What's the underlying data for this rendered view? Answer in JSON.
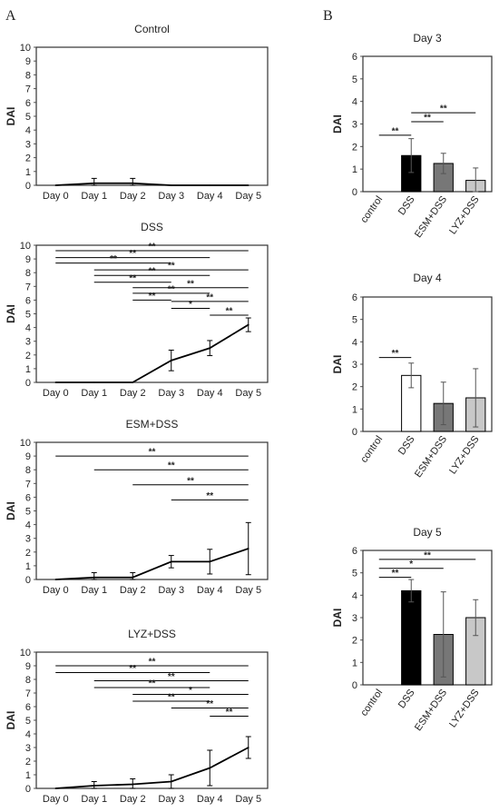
{
  "figure": {
    "panel_labels": [
      "A",
      "B"
    ]
  },
  "chart_data": [
    {
      "type": "line",
      "panel": "A",
      "title": "Control",
      "ylabel": "DAI",
      "categories": [
        "Day 0",
        "Day 1",
        "Day 2",
        "Day 3",
        "Day 4",
        "Day 5"
      ],
      "values": [
        0,
        0.15,
        0.15,
        0,
        0,
        0
      ],
      "errors": [
        0,
        0.35,
        0.35,
        0,
        0,
        0
      ],
      "ylim": [
        0,
        10
      ],
      "yticks": [
        0,
        1,
        2,
        3,
        4,
        5,
        6,
        7,
        8,
        9,
        10
      ],
      "comparisons": []
    },
    {
      "type": "line",
      "panel": "A",
      "title": "DSS",
      "ylabel": "DAI",
      "categories": [
        "Day 0",
        "Day 1",
        "Day 2",
        "Day 3",
        "Day 4",
        "Day 5"
      ],
      "values": [
        0,
        0,
        0,
        1.6,
        2.5,
        4.2
      ],
      "errors": [
        0,
        0,
        0,
        0.75,
        0.55,
        0.5
      ],
      "ylim": [
        0,
        10
      ],
      "yticks": [
        0,
        1,
        2,
        3,
        4,
        5,
        6,
        7,
        8,
        9,
        10
      ],
      "comparisons": [
        {
          "from": 0,
          "to": 5,
          "y": 9.6,
          "label": "**"
        },
        {
          "from": 0,
          "to": 4,
          "y": 9.1,
          "label": "**"
        },
        {
          "from": 0,
          "to": 3,
          "y": 8.7,
          "label": "**"
        },
        {
          "from": 1,
          "to": 5,
          "y": 8.2,
          "label": "**"
        },
        {
          "from": 1,
          "to": 4,
          "y": 7.8,
          "label": "**"
        },
        {
          "from": 1,
          "to": 3,
          "y": 7.3,
          "label": "**"
        },
        {
          "from": 2,
          "to": 5,
          "y": 6.9,
          "label": "**"
        },
        {
          "from": 2,
          "to": 4,
          "y": 6.5,
          "label": "**"
        },
        {
          "from": 2,
          "to": 3,
          "y": 6.0,
          "label": "**"
        },
        {
          "from": 3,
          "to": 5,
          "y": 5.9,
          "label": "**"
        },
        {
          "from": 3,
          "to": 4,
          "y": 5.4,
          "label": "*"
        },
        {
          "from": 4,
          "to": 5,
          "y": 4.9,
          "label": "**"
        }
      ]
    },
    {
      "type": "line",
      "panel": "A",
      "title": "ESM+DSS",
      "ylabel": "DAI",
      "categories": [
        "Day 0",
        "Day 1",
        "Day 2",
        "Day 3",
        "Day 4",
        "Day 5"
      ],
      "values": [
        0,
        0.15,
        0.15,
        1.3,
        1.3,
        2.25
      ],
      "errors": [
        0,
        0.35,
        0.35,
        0.45,
        0.9,
        1.9
      ],
      "ylim": [
        0,
        10
      ],
      "yticks": [
        0,
        1,
        2,
        3,
        4,
        5,
        6,
        7,
        8,
        9,
        10
      ],
      "comparisons": [
        {
          "from": 0,
          "to": 5,
          "y": 9.0,
          "label": "**"
        },
        {
          "from": 1,
          "to": 5,
          "y": 8.0,
          "label": "**"
        },
        {
          "from": 2,
          "to": 5,
          "y": 6.9,
          "label": "**"
        },
        {
          "from": 3,
          "to": 5,
          "y": 5.8,
          "label": "**"
        }
      ]
    },
    {
      "type": "line",
      "panel": "A",
      "title": "LYZ+DSS",
      "ylabel": "DAI",
      "categories": [
        "Day 0",
        "Day 1",
        "Day 2",
        "Day 3",
        "Day 4",
        "Day 5"
      ],
      "values": [
        0,
        0.2,
        0.3,
        0.5,
        1.5,
        3.0
      ],
      "errors": [
        0,
        0.3,
        0.4,
        0.5,
        1.3,
        0.8
      ],
      "ylim": [
        0,
        10
      ],
      "yticks": [
        0,
        1,
        2,
        3,
        4,
        5,
        6,
        7,
        8,
        9,
        10
      ],
      "comparisons": [
        {
          "from": 0,
          "to": 5,
          "y": 9.0,
          "label": "**"
        },
        {
          "from": 0,
          "to": 4,
          "y": 8.5,
          "label": "**"
        },
        {
          "from": 1,
          "to": 5,
          "y": 7.9,
          "label": "**"
        },
        {
          "from": 1,
          "to": 4,
          "y": 7.4,
          "label": "**"
        },
        {
          "from": 2,
          "to": 5,
          "y": 6.9,
          "label": "*"
        },
        {
          "from": 2,
          "to": 4,
          "y": 6.4,
          "label": "**"
        },
        {
          "from": 3,
          "to": 5,
          "y": 5.9,
          "label": "**"
        },
        {
          "from": 4,
          "to": 5,
          "y": 5.3,
          "label": "**"
        }
      ]
    },
    {
      "type": "bar",
      "panel": "B",
      "title": "Day 3",
      "ylabel": "DAI",
      "categories": [
        "control",
        "DSS",
        "ESM+DSS",
        "LYZ+DSS"
      ],
      "values": [
        0,
        1.6,
        1.25,
        0.5
      ],
      "errors": [
        0,
        0.75,
        0.45,
        0.55
      ],
      "colors": [
        "#ffffff",
        "#000000",
        "#777777",
        "#c8c8c8"
      ],
      "ylim": [
        0,
        6
      ],
      "yticks": [
        0,
        1,
        2,
        3,
        4,
        5,
        6
      ],
      "comparisons": [
        {
          "from": 0,
          "to": 1,
          "y": 2.5,
          "label": "**"
        },
        {
          "from": 1,
          "to": 2,
          "y": 3.1,
          "label": "**"
        },
        {
          "from": 1,
          "to": 3,
          "y": 3.5,
          "label": "**"
        }
      ]
    },
    {
      "type": "bar",
      "panel": "B",
      "title": "Day 4",
      "ylabel": "DAI",
      "categories": [
        "control",
        "DSS",
        "ESM+DSS",
        "LYZ+DSS"
      ],
      "values": [
        0,
        2.5,
        1.25,
        1.5
      ],
      "errors": [
        0,
        0.55,
        0.95,
        1.3
      ],
      "colors": [
        "#ffffff",
        "#ffffff",
        "#777777",
        "#c8c8c8"
      ],
      "ylim": [
        0,
        6
      ],
      "yticks": [
        0,
        1,
        2,
        3,
        4,
        5,
        6
      ],
      "comparisons": [
        {
          "from": 0,
          "to": 1,
          "y": 3.3,
          "label": "**"
        }
      ]
    },
    {
      "type": "bar",
      "panel": "B",
      "title": "Day 5",
      "ylabel": "DAI",
      "categories": [
        "control",
        "DSS",
        "ESM+DSS",
        "LYZ+DSS"
      ],
      "values": [
        0,
        4.2,
        2.25,
        3.0
      ],
      "errors": [
        0,
        0.5,
        1.9,
        0.8
      ],
      "colors": [
        "#ffffff",
        "#000000",
        "#777777",
        "#c8c8c8"
      ],
      "ylim": [
        0,
        6
      ],
      "yticks": [
        0,
        1,
        2,
        3,
        4,
        5,
        6
      ],
      "comparisons": [
        {
          "from": 0,
          "to": 3,
          "y": 5.6,
          "label": "**"
        },
        {
          "from": 0,
          "to": 2,
          "y": 5.2,
          "label": "*"
        },
        {
          "from": 0,
          "to": 1,
          "y": 4.8,
          "label": "**"
        }
      ]
    }
  ]
}
